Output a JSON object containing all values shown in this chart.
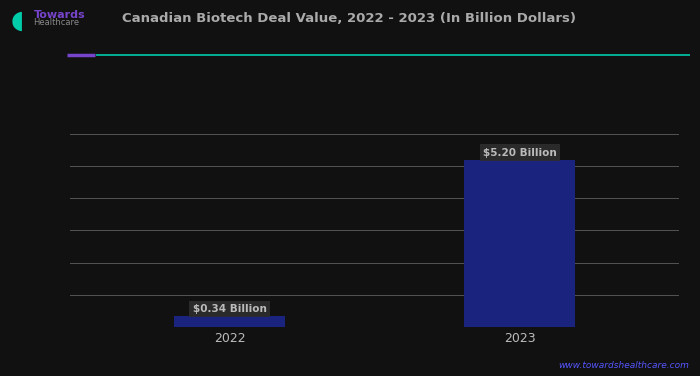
{
  "title": "Canadian Biotech Deal Value, 2022 - 2023 (In Billion Dollars)",
  "categories": [
    "2022",
    "2023"
  ],
  "values": [
    0.34,
    5.2
  ],
  "bar_color": "#1a237e",
  "bar_width": 0.38,
  "value_labels": [
    "$0.34 Billion",
    "$5.20 Billion"
  ],
  "ylim": [
    0,
    7
  ],
  "yticks": [
    1,
    2,
    3,
    4,
    5,
    6
  ],
  "background_color": "#111111",
  "plot_bg_color": "#111111",
  "grid_color": "#555555",
  "text_color": "#bbbbbb",
  "title_color": "#aaaaaa",
  "source_text": "www.towardshealthcare.com",
  "source_color": "#5555ff",
  "separator_color_left": "#7744cc",
  "separator_color_right": "#00ccaa",
  "title_fontsize": 9.5,
  "tick_fontsize": 9,
  "value_label_fontsize": 7.5,
  "value_label_bg": "#2d2d2d"
}
